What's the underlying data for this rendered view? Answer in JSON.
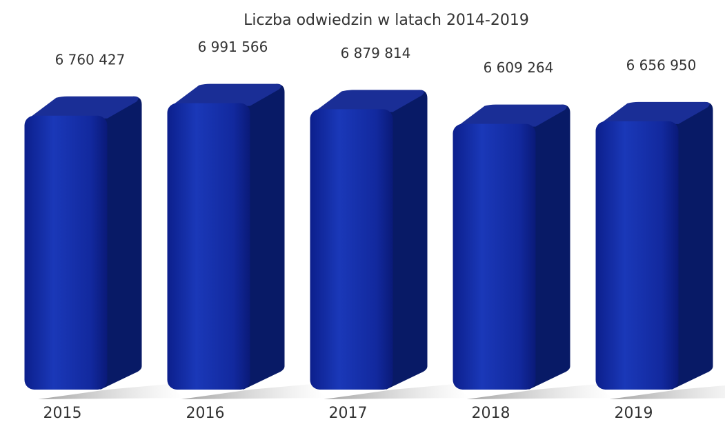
{
  "chart_data": {
    "type": "bar",
    "title": "Liczba odwiedzin w latach 2014-2019",
    "categories": [
      "2015",
      "2016",
      "2017",
      "2018",
      "2019"
    ],
    "values": [
      6760427,
      6991566,
      6879814,
      6609264,
      6656950
    ],
    "value_labels": [
      "6 760 427",
      "6 991 566",
      "6 879 814",
      "6 609 264",
      "6 656 950"
    ],
    "color": "#1430a8",
    "ylim": [
      1700000,
      7000000
    ]
  }
}
